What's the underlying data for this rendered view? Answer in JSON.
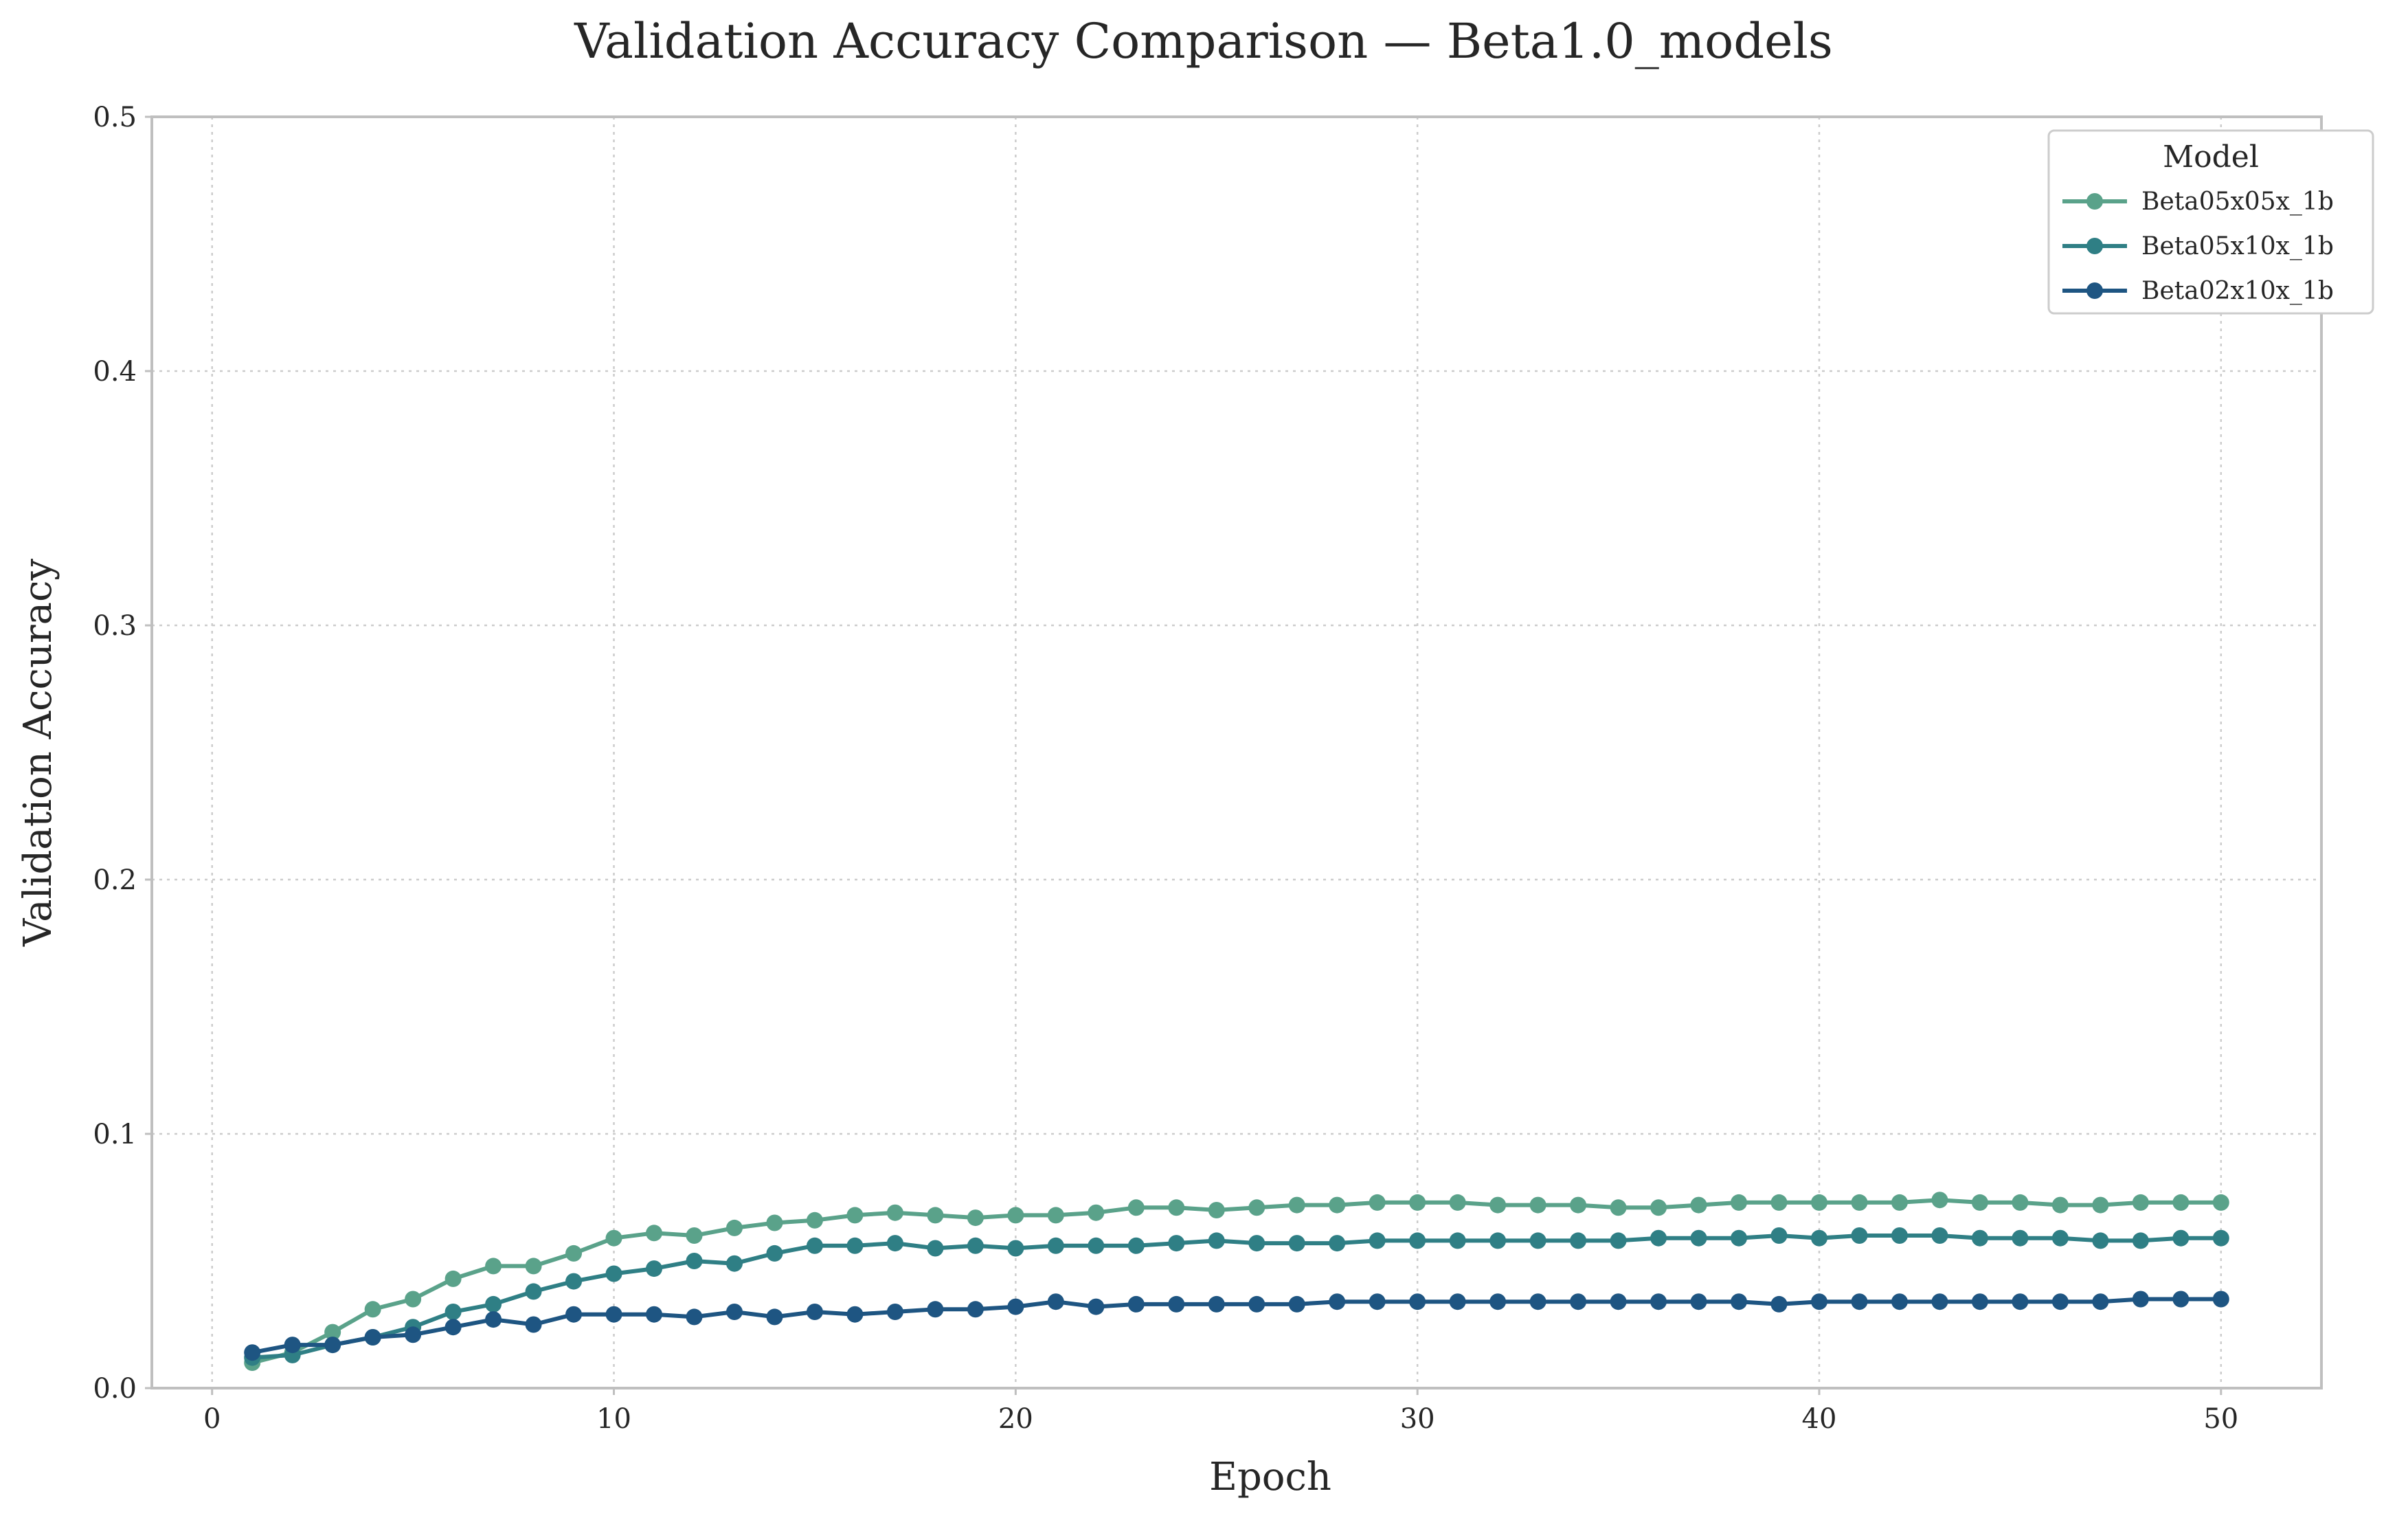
{
  "chart_data": {
    "type": "line",
    "title": "Validation Accuracy Comparison — Beta1.0_models",
    "xlabel": "Epoch",
    "ylabel": "Validation Accuracy",
    "xlim": [
      -1.5,
      52.5
    ],
    "ylim": [
      0.0,
      0.5
    ],
    "xticks": [
      0,
      10,
      20,
      30,
      40,
      50
    ],
    "xtick_labels": [
      "0",
      "10",
      "20",
      "30",
      "40",
      "50"
    ],
    "yticks": [
      0.0,
      0.1,
      0.2,
      0.3,
      0.4,
      0.5
    ],
    "ytick_labels": [
      "0.0",
      "0.1",
      "0.2",
      "0.3",
      "0.4",
      "0.5"
    ],
    "grid": true,
    "legend": {
      "title": "Model",
      "placement": "top-right"
    },
    "x": [
      1,
      2,
      3,
      4,
      5,
      6,
      7,
      8,
      9,
      10,
      11,
      12,
      13,
      14,
      15,
      16,
      17,
      18,
      19,
      20,
      21,
      22,
      23,
      24,
      25,
      26,
      27,
      28,
      29,
      30,
      31,
      32,
      33,
      34,
      35,
      36,
      37,
      38,
      39,
      40,
      41,
      42,
      43,
      44,
      45,
      46,
      47,
      48,
      49,
      50
    ],
    "series": [
      {
        "name": "Beta05x05x_1b",
        "color": "#5aa28a",
        "values": [
          0.01,
          0.014,
          0.022,
          0.031,
          0.035,
          0.043,
          0.048,
          0.048,
          0.053,
          0.059,
          0.061,
          0.06,
          0.063,
          0.065,
          0.066,
          0.068,
          0.069,
          0.068,
          0.067,
          0.068,
          0.068,
          0.069,
          0.071,
          0.071,
          0.07,
          0.071,
          0.072,
          0.072,
          0.073,
          0.073,
          0.073,
          0.072,
          0.072,
          0.072,
          0.071,
          0.071,
          0.072,
          0.073,
          0.073,
          0.073,
          0.073,
          0.073,
          0.074,
          0.073,
          0.073,
          0.072,
          0.072,
          0.073,
          0.073,
          0.073
        ]
      },
      {
        "name": "Beta05x10x_1b",
        "color": "#2f7f85",
        "values": [
          0.012,
          0.013,
          0.017,
          0.02,
          0.024,
          0.03,
          0.033,
          0.038,
          0.042,
          0.045,
          0.047,
          0.05,
          0.049,
          0.053,
          0.056,
          0.056,
          0.057,
          0.055,
          0.056,
          0.055,
          0.056,
          0.056,
          0.056,
          0.057,
          0.058,
          0.057,
          0.057,
          0.057,
          0.058,
          0.058,
          0.058,
          0.058,
          0.058,
          0.058,
          0.058,
          0.059,
          0.059,
          0.059,
          0.06,
          0.059,
          0.06,
          0.06,
          0.06,
          0.059,
          0.059,
          0.059,
          0.058,
          0.058,
          0.059,
          0.059
        ]
      },
      {
        "name": "Beta02x10x_1b",
        "color": "#1e5582",
        "values": [
          0.014,
          0.017,
          0.017,
          0.02,
          0.021,
          0.024,
          0.027,
          0.025,
          0.029,
          0.029,
          0.029,
          0.028,
          0.03,
          0.028,
          0.03,
          0.029,
          0.03,
          0.031,
          0.031,
          0.032,
          0.034,
          0.032,
          0.033,
          0.033,
          0.033,
          0.033,
          0.033,
          0.034,
          0.034,
          0.034,
          0.034,
          0.034,
          0.034,
          0.034,
          0.034,
          0.034,
          0.034,
          0.034,
          0.033,
          0.034,
          0.034,
          0.034,
          0.034,
          0.034,
          0.034,
          0.034,
          0.034,
          0.035,
          0.035,
          0.035
        ]
      }
    ]
  }
}
